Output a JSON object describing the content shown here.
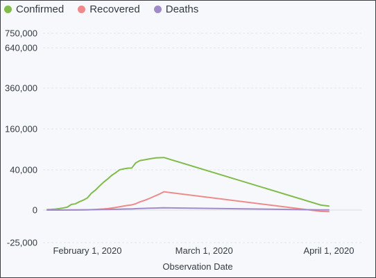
{
  "chart_data": {
    "type": "line",
    "title": "",
    "xlabel": "Observation Date",
    "ylabel": "",
    "y_scale": "symlog",
    "grid": true,
    "legend_position": "top-left",
    "y_ticks": [
      {
        "value": 750000,
        "label": "750,000"
      },
      {
        "value": 640000,
        "label": "640,000"
      },
      {
        "value": 360000,
        "label": "360,000"
      },
      {
        "value": 160000,
        "label": "160,000"
      },
      {
        "value": 40000,
        "label": "40,000"
      },
      {
        "value": 0,
        "label": "0"
      },
      {
        "value": -25000,
        "label": "-25,000"
      }
    ],
    "x_ticks": [
      {
        "value": "2020-02-01",
        "label": "February 1, 2020"
      },
      {
        "value": "2020-03-01",
        "label": "March 1, 2020"
      },
      {
        "value": "2020-04-01",
        "label": "April 1, 2020"
      }
    ],
    "series": [
      {
        "name": "Confirmed",
        "color": "#80bc4a",
        "points": [
          [
            "2020-01-22",
            555
          ],
          [
            "2020-01-23",
            653
          ],
          [
            "2020-01-24",
            941
          ],
          [
            "2020-01-25",
            1438
          ],
          [
            "2020-01-26",
            2118
          ],
          [
            "2020-01-27",
            2927
          ],
          [
            "2020-01-28",
            5578
          ],
          [
            "2020-01-29",
            6166
          ],
          [
            "2020-01-30",
            8234
          ],
          [
            "2020-01-31",
            9927
          ],
          [
            "2020-02-01",
            12038
          ],
          [
            "2020-02-02",
            16787
          ],
          [
            "2020-02-03",
            19881
          ],
          [
            "2020-02-04",
            23892
          ],
          [
            "2020-02-05",
            27635
          ],
          [
            "2020-02-06",
            30817
          ],
          [
            "2020-02-07",
            34391
          ],
          [
            "2020-02-08",
            37120
          ],
          [
            "2020-02-09",
            40150
          ],
          [
            "2020-02-10",
            42762
          ],
          [
            "2020-02-11",
            44802
          ],
          [
            "2020-02-12",
            45221
          ],
          [
            "2020-02-13",
            60368
          ],
          [
            "2020-02-14",
            66885
          ],
          [
            "2020-02-15",
            69030
          ],
          [
            "2020-02-16",
            71224
          ],
          [
            "2020-02-17",
            73258
          ],
          [
            "2020-02-18",
            75136
          ],
          [
            "2020-02-19",
            75639
          ],
          [
            "2020-02-20",
            76197
          ],
          [
            "2020-03-30",
            5000
          ],
          [
            "2020-04-01",
            4000
          ]
        ]
      },
      {
        "name": "Recovered",
        "color": "#ee8a8a",
        "points": [
          [
            "2020-01-22",
            28
          ],
          [
            "2020-01-23",
            30
          ],
          [
            "2020-01-24",
            36
          ],
          [
            "2020-01-25",
            39
          ],
          [
            "2020-01-26",
            52
          ],
          [
            "2020-01-27",
            61
          ],
          [
            "2020-01-28",
            107
          ],
          [
            "2020-01-29",
            126
          ],
          [
            "2020-01-30",
            143
          ],
          [
            "2020-01-31",
            222
          ],
          [
            "2020-02-01",
            284
          ],
          [
            "2020-02-02",
            472
          ],
          [
            "2020-02-03",
            623
          ],
          [
            "2020-02-04",
            852
          ],
          [
            "2020-02-05",
            1124
          ],
          [
            "2020-02-06",
            1487
          ],
          [
            "2020-02-07",
            2011
          ],
          [
            "2020-02-08",
            2616
          ],
          [
            "2020-02-09",
            3244
          ],
          [
            "2020-02-10",
            3946
          ],
          [
            "2020-02-11",
            4683
          ],
          [
            "2020-02-12",
            5150
          ],
          [
            "2020-02-13",
            6295
          ],
          [
            "2020-02-14",
            8058
          ],
          [
            "2020-02-15",
            9395
          ],
          [
            "2020-02-16",
            10865
          ],
          [
            "2020-02-17",
            12583
          ],
          [
            "2020-02-18",
            14352
          ],
          [
            "2020-02-19",
            16121
          ],
          [
            "2020-02-20",
            18177
          ],
          [
            "2020-03-30",
            -1000
          ],
          [
            "2020-04-01",
            -1200
          ]
        ]
      },
      {
        "name": "Deaths",
        "color": "#a08bc8",
        "points": [
          [
            "2020-01-22",
            17
          ],
          [
            "2020-01-23",
            18
          ],
          [
            "2020-01-24",
            26
          ],
          [
            "2020-01-25",
            42
          ],
          [
            "2020-01-26",
            56
          ],
          [
            "2020-01-27",
            82
          ],
          [
            "2020-01-28",
            131
          ],
          [
            "2020-01-29",
            133
          ],
          [
            "2020-01-30",
            171
          ],
          [
            "2020-01-31",
            213
          ],
          [
            "2020-02-01",
            259
          ],
          [
            "2020-02-02",
            362
          ],
          [
            "2020-02-03",
            426
          ],
          [
            "2020-02-04",
            492
          ],
          [
            "2020-02-05",
            564
          ],
          [
            "2020-02-06",
            634
          ],
          [
            "2020-02-07",
            719
          ],
          [
            "2020-02-08",
            806
          ],
          [
            "2020-02-09",
            906
          ],
          [
            "2020-02-10",
            1013
          ],
          [
            "2020-02-11",
            1113
          ],
          [
            "2020-02-12",
            1118
          ],
          [
            "2020-02-13",
            1371
          ],
          [
            "2020-02-14",
            1523
          ],
          [
            "2020-02-15",
            1666
          ],
          [
            "2020-02-16",
            1770
          ],
          [
            "2020-02-17",
            1868
          ],
          [
            "2020-02-18",
            2007
          ],
          [
            "2020-02-19",
            2122
          ],
          [
            "2020-02-20",
            2247
          ],
          [
            "2020-03-30",
            200
          ],
          [
            "2020-04-01",
            150
          ]
        ]
      }
    ]
  }
}
